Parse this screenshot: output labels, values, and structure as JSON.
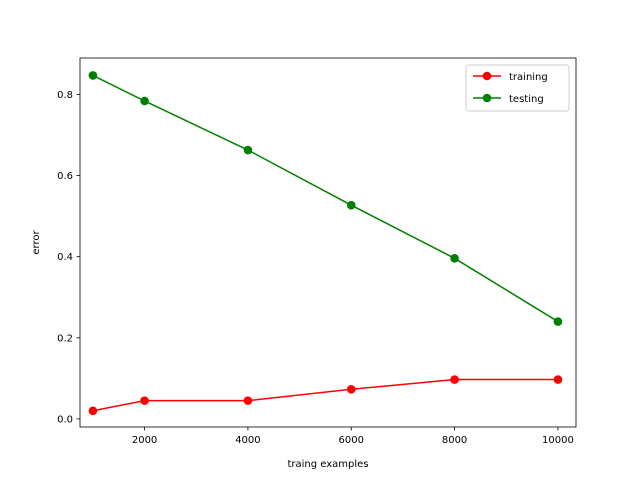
{
  "chart_data": {
    "type": "line",
    "title": "",
    "xlabel": "traing examples",
    "ylabel": "error",
    "xlim": [
      750,
      10350
    ],
    "ylim": [
      -0.02,
      0.89
    ],
    "xticks": [
      2000,
      4000,
      6000,
      8000,
      10000
    ],
    "yticks": [
      0.0,
      0.2,
      0.4,
      0.6,
      0.8
    ],
    "xtick_labels": [
      "2000",
      "4000",
      "6000",
      "8000",
      "10000"
    ],
    "ytick_labels": [
      "0.0",
      "0.2",
      "0.4",
      "0.6",
      "0.8"
    ],
    "grid": false,
    "legend_position": "upper right",
    "series": [
      {
        "name": "training",
        "color": "#ff0000",
        "marker": "circle",
        "x": [
          1000,
          2000,
          4000,
          6000,
          8000,
          10000
        ],
        "y": [
          0.02,
          0.045,
          0.045,
          0.073,
          0.097,
          0.097
        ]
      },
      {
        "name": "testing",
        "color": "#008000",
        "marker": "circle",
        "x": [
          1000,
          2000,
          4000,
          6000,
          8000,
          10000
        ],
        "y": [
          0.847,
          0.784,
          0.663,
          0.527,
          0.396,
          0.24
        ]
      }
    ]
  }
}
